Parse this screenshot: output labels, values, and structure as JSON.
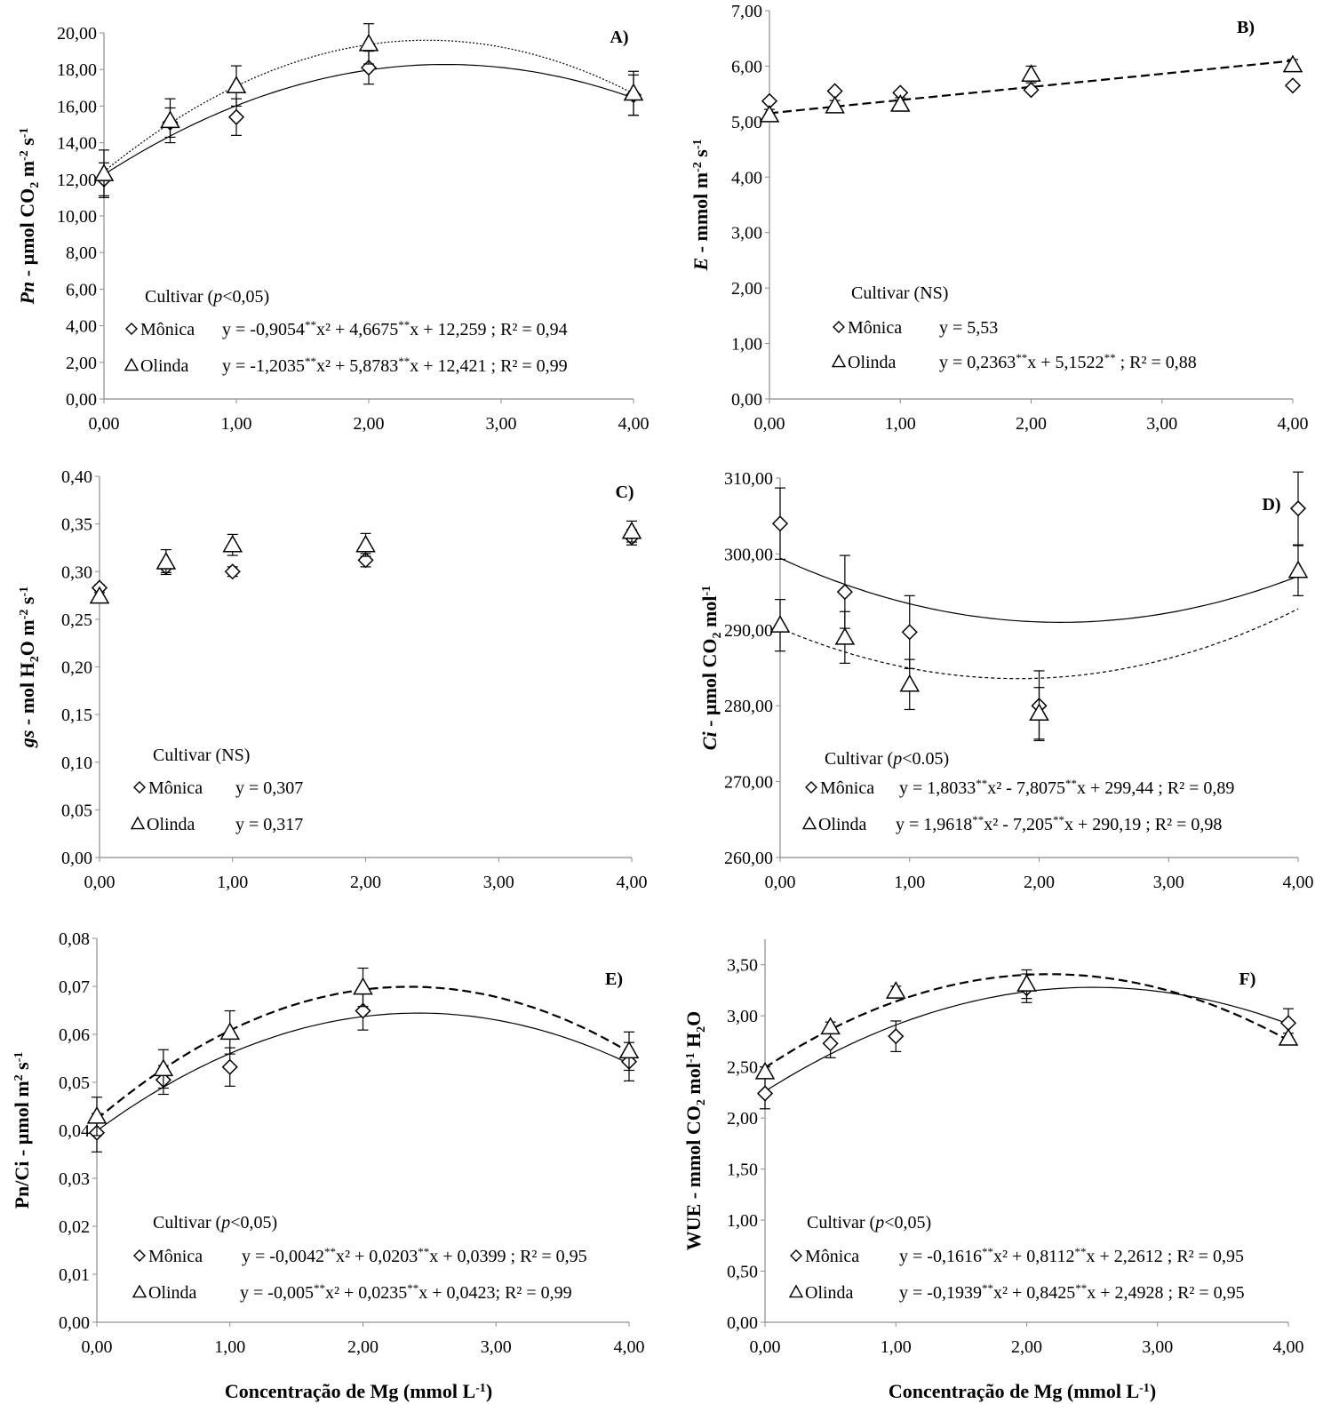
{
  "chart_data": [
    {
      "type": "scatter",
      "panel_label": "A)",
      "ylabel_italic": "Pn",
      "ylabel_rest": " - µmol CO",
      "ylabel_sub": "2",
      "ylabel_tail": " m",
      "ylabel_sup1": "-2",
      "ylabel_tail2": " s",
      "ylabel_sup2": "-1",
      "xlabel": "",
      "xlim": [
        0,
        4
      ],
      "ylim": [
        0,
        20
      ],
      "x_ticks": [
        "0,00",
        "1,00",
        "2,00",
        "3,00",
        "4,00"
      ],
      "y_ticks": [
        "0,00",
        "2,00",
        "4,00",
        "6,00",
        "8,00",
        "10,00",
        "12,00",
        "14,00",
        "16,00",
        "18,00",
        "20,00"
      ],
      "x_tick_values": [
        0,
        1,
        2,
        3,
        4
      ],
      "y_tick_values": [
        0,
        2,
        4,
        6,
        8,
        10,
        12,
        14,
        16,
        18,
        20
      ],
      "legend_title": "Cultivar (p<0,05)",
      "series": [
        {
          "name": "Mônica",
          "marker": "diamond",
          "x": [
            0,
            0.5,
            1,
            2,
            4
          ],
          "y": [
            12.0,
            15.1,
            15.4,
            18.1,
            16.6
          ],
          "err": [
            0.9,
            0.8,
            1.0,
            0.9,
            1.1
          ],
          "fit": {
            "a": -0.9054,
            "b": 4.6675,
            "c": 12.259,
            "style": "solid"
          },
          "equation": "y = -0,9054**x² + 4,6675**x + 12,259 ; R² = 0,94"
        },
        {
          "name": "Olinda",
          "marker": "triangle",
          "x": [
            0,
            0.5,
            1,
            2,
            4
          ],
          "y": [
            12.3,
            15.2,
            17.1,
            19.4,
            16.7
          ],
          "err": [
            1.3,
            1.2,
            1.1,
            1.1,
            1.2
          ],
          "fit": {
            "a": -1.2035,
            "b": 5.8783,
            "c": 12.421,
            "style": "dotted"
          },
          "equation": "y = -1,2035**x² + 5,8783**x + 12,421 ; R² = 0,99"
        }
      ]
    },
    {
      "type": "scatter",
      "panel_label": "B)",
      "ylabel_italic": "E",
      "ylabel_rest": " - mmol  m",
      "ylabel_sub": "",
      "ylabel_tail": "",
      "ylabel_sup1": "-2",
      "ylabel_tail2": " s",
      "ylabel_sup2": "-1",
      "xlabel": "",
      "xlim": [
        0,
        4
      ],
      "ylim": [
        0,
        7
      ],
      "x_ticks": [
        "0,00",
        "1,00",
        "2,00",
        "3,00",
        "4,00"
      ],
      "y_ticks": [
        "0,00",
        "1,00",
        "2,00",
        "3,00",
        "4,00",
        "5,00",
        "6,00",
        "7,00"
      ],
      "x_tick_values": [
        0,
        1,
        2,
        3,
        4
      ],
      "y_tick_values": [
        0,
        1,
        2,
        3,
        4,
        5,
        6,
        7
      ],
      "legend_title": "Cultivar (NS)",
      "series": [
        {
          "name": "Mônica",
          "marker": "diamond",
          "x": [
            0,
            0.5,
            1,
            2,
            4
          ],
          "y": [
            5.37,
            5.55,
            5.52,
            5.57,
            5.65
          ],
          "err": [
            0,
            0,
            0,
            0,
            0
          ],
          "equation": "y = 5,53"
        },
        {
          "name": "Olinda",
          "marker": "triangle",
          "x": [
            0,
            0.5,
            1,
            2,
            4
          ],
          "y": [
            5.12,
            5.28,
            5.31,
            5.85,
            6.02
          ],
          "err": [
            0.1,
            0.1,
            0.12,
            0.15,
            0.1
          ],
          "fit": {
            "a": 0,
            "b": 0.2363,
            "c": 5.1522,
            "style": "dashed"
          },
          "equation": "y = 0,2363**x + 5,1522** ; R² = 0,88"
        }
      ]
    },
    {
      "type": "scatter",
      "panel_label": "C)",
      "ylabel_italic": "gs",
      "ylabel_rest": " - mol H",
      "ylabel_sub": "2",
      "ylabel_tail": "O m",
      "ylabel_sup1": "-2",
      "ylabel_tail2": " s",
      "ylabel_sup2": "-1",
      "xlabel": "",
      "xlim": [
        0,
        4
      ],
      "ylim": [
        0,
        0.4
      ],
      "x_ticks": [
        "0,00",
        "1,00",
        "2,00",
        "3,00",
        "4,00"
      ],
      "y_ticks": [
        "0,00",
        "0,05",
        "0,10",
        "0,15",
        "0,20",
        "0,25",
        "0,30",
        "0,35",
        "0,40"
      ],
      "x_tick_values": [
        0,
        1,
        2,
        3,
        4
      ],
      "y_tick_values": [
        0,
        0.05,
        0.1,
        0.15,
        0.2,
        0.25,
        0.3,
        0.35,
        0.4
      ],
      "legend_title": "Cultivar (NS)",
      "series": [
        {
          "name": "Mônica",
          "marker": "diamond",
          "x": [
            0,
            0.5,
            1,
            2,
            4
          ],
          "y": [
            0.283,
            0.305,
            0.3,
            0.312,
            0.336
          ],
          "err": [
            0.003,
            0.006,
            0.005,
            0.007,
            0.008
          ],
          "equation": "y = 0,307"
        },
        {
          "name": "Olinda",
          "marker": "triangle",
          "x": [
            0,
            0.5,
            1,
            2,
            4
          ],
          "y": [
            0.274,
            0.31,
            0.328,
            0.328,
            0.342
          ],
          "err": [
            0.004,
            0.013,
            0.011,
            0.012,
            0.011
          ],
          "equation": "y = 0,317"
        }
      ]
    },
    {
      "type": "scatter",
      "panel_label": "D)",
      "ylabel_italic": "Ci",
      "ylabel_rest": " - µmol CO",
      "ylabel_sub": "2",
      "ylabel_tail": " mol",
      "ylabel_sup1": "-1",
      "ylabel_tail2": "",
      "ylabel_sup2": "",
      "xlabel": "",
      "xlim": [
        0,
        4
      ],
      "ylim": [
        260,
        310
      ],
      "x_ticks": [
        "0,00",
        "1,00",
        "2,00",
        "3,00",
        "4,00"
      ],
      "y_ticks": [
        "260,00",
        "270,00",
        "280,00",
        "290,00",
        "300,00",
        "310,00"
      ],
      "x_tick_values": [
        0,
        1,
        2,
        3,
        4
      ],
      "y_tick_values": [
        260,
        270,
        280,
        290,
        300,
        310
      ],
      "legend_title": "Cultivar (p<0.05)",
      "series": [
        {
          "name": "Mônica",
          "marker": "diamond",
          "x": [
            0,
            0.5,
            1,
            2,
            4
          ],
          "y": [
            304,
            295,
            289.7,
            280,
            306
          ],
          "err": [
            4.7,
            4.8,
            4.8,
            4.6,
            4.8
          ],
          "fit": {
            "a": 1.8033,
            "b": -7.8075,
            "c": 299.44,
            "style": "solid"
          },
          "equation": "y = 1,8033**x² - 7,8075**x + 299,44 ; R² = 0,89"
        },
        {
          "name": "Olinda",
          "marker": "triangle",
          "x": [
            0,
            0.5,
            1,
            2,
            4
          ],
          "y": [
            290.6,
            289,
            282.8,
            279,
            297.8
          ],
          "err": [
            3.4,
            3.4,
            3.3,
            3.4,
            3.3
          ],
          "fit": {
            "a": 1.9618,
            "b": -7.205,
            "c": 290.19,
            "style": "dashed-fine"
          },
          "equation": "y = 1,9618**x² - 7,205**x + 290,19 ; R² = 0,98"
        }
      ]
    },
    {
      "type": "scatter",
      "panel_label": "E)",
      "ylabel_italic": "",
      "ylabel_rest": "Pn/Ci - µmol m",
      "ylabel_sub": "",
      "ylabel_tail": "",
      "ylabel_sup1": "2",
      "ylabel_tail2": " s",
      "ylabel_sup2": "-1",
      "xlabel": "Concentração de Mg (mmol L",
      "xlabel_sup": "-1",
      "xlabel_end": ")",
      "xlim": [
        0,
        4
      ],
      "ylim": [
        0,
        0.08
      ],
      "x_ticks": [
        "0,00",
        "1,00",
        "2,00",
        "3,00",
        "4,00"
      ],
      "y_ticks": [
        "0,00",
        "0,01",
        "0,02",
        "0,03",
        "0,04",
        "0,05",
        "0,06",
        "0,07",
        "0,08"
      ],
      "x_tick_values": [
        0,
        1,
        2,
        3,
        4
      ],
      "y_tick_values": [
        0,
        0.01,
        0.02,
        0.03,
        0.04,
        0.05,
        0.06,
        0.07,
        0.08
      ],
      "legend_title": "Cultivar (p<0,05)",
      "series": [
        {
          "name": "Mônica",
          "marker": "diamond",
          "x": [
            0,
            0.5,
            1,
            2,
            4
          ],
          "y": [
            0.0395,
            0.0505,
            0.0532,
            0.0649,
            0.0543
          ],
          "err": [
            0.004,
            0.003,
            0.004,
            0.004,
            0.004
          ],
          "fit": {
            "a": -0.0042,
            "b": 0.0203,
            "c": 0.0399,
            "style": "solid"
          },
          "equation": "y = -0,0042**x² + 0,0203**x + 0,0399 ; R² = 0,95"
        },
        {
          "name": "Olinda",
          "marker": "triangle",
          "x": [
            0,
            0.5,
            1,
            2,
            4
          ],
          "y": [
            0.0429,
            0.0528,
            0.0604,
            0.0698,
            0.0565
          ],
          "err": [
            0.004,
            0.004,
            0.0045,
            0.004,
            0.004
          ],
          "fit": {
            "a": -0.005,
            "b": 0.0235,
            "c": 0.0423,
            "style": "dashed"
          },
          "equation": "y = -0,005**x² + 0,0235**x + 0,0423; R² = 0,99"
        }
      ]
    },
    {
      "type": "scatter",
      "panel_label": "F)",
      "ylabel_italic": "",
      "ylabel_rest": "WUE - mmol CO",
      "ylabel_sub": "2",
      "ylabel_tail": " mol",
      "ylabel_sup1": "-1",
      "ylabel_tail2": " H",
      "ylabel_sup2": "",
      "ylabel_sub2": "2",
      "ylabel_end": "O",
      "xlabel": "Concentração de Mg (mmol L",
      "xlabel_sup": "-1",
      "xlabel_end": ")",
      "xlim": [
        0,
        4
      ],
      "ylim": [
        0,
        3.5
      ],
      "y_top": 3.75,
      "x_ticks": [
        "0,00",
        "1,00",
        "2,00",
        "3,00",
        "4,00"
      ],
      "y_ticks": [
        "0,00",
        "0,50",
        "1,00",
        "1,50",
        "2,00",
        "2,50",
        "3,00",
        "3,50"
      ],
      "x_tick_values": [
        0,
        1,
        2,
        3,
        4
      ],
      "y_tick_values": [
        0,
        0.5,
        1,
        1.5,
        2,
        2.5,
        3,
        3.5
      ],
      "legend_title": "Cultivar (p<0,05)",
      "series": [
        {
          "name": "Mônica",
          "marker": "diamond",
          "x": [
            0,
            0.5,
            1,
            2,
            4
          ],
          "y": [
            2.24,
            2.73,
            2.8,
            3.27,
            2.93
          ],
          "err": [
            0.15,
            0.14,
            0.15,
            0.14,
            0.14
          ],
          "fit": {
            "a": -0.1616,
            "b": 0.8112,
            "c": 2.2612,
            "style": "solid"
          },
          "equation": "y = -0,1616**x² + 0,8112**x + 2,2612 ; R² = 0,95"
        },
        {
          "name": "Olinda",
          "marker": "triangle",
          "x": [
            0,
            0.5,
            1,
            2,
            4
          ],
          "y": [
            2.45,
            2.89,
            3.24,
            3.31,
            2.78
          ],
          "err": [
            0.05,
            0.05,
            0.05,
            0.14,
            0.05
          ],
          "fit": {
            "a": -0.1939,
            "b": 0.8425,
            "c": 2.4928,
            "style": "dashed"
          },
          "equation": "y = -0,1939**x² + 0,8425**x + 2,4928 ; R² = 0,95"
        }
      ]
    }
  ]
}
